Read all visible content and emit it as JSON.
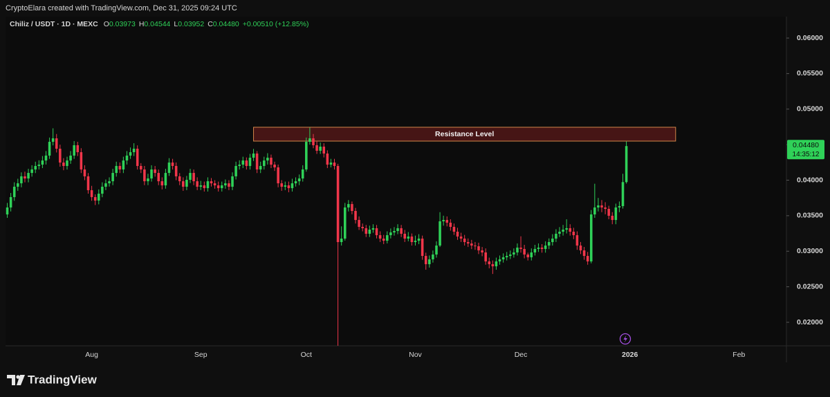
{
  "header": {
    "attribution": "CryptoElara created with TradingView.com, Dec 31, 2025 09:24 UTC",
    "brand": "TradingView"
  },
  "chart_data": {
    "type": "candlestick",
    "symbol": "Chiliz / USDT · 1D · MEXC",
    "ohlc_legend": [
      {
        "key": "O",
        "value": "0.03973"
      },
      {
        "key": "H",
        "value": "0.04544"
      },
      {
        "key": "L",
        "value": "0.03952"
      },
      {
        "key": "C",
        "value": "0.04480"
      }
    ],
    "change": "+0.00510 (+12.85%)",
    "up_color": "#2fd158",
    "down_color": "#f0364a",
    "grid": false,
    "ylim": [
      0.01669,
      0.06302
    ],
    "yticks": [
      {
        "value": 0.02,
        "label": "0.02000"
      },
      {
        "value": 0.025,
        "label": "0.02500"
      },
      {
        "value": 0.03,
        "label": "0.03000"
      },
      {
        "value": 0.035,
        "label": "0.03500"
      },
      {
        "value": 0.04,
        "label": "0.04000"
      },
      {
        "value": 0.045,
        "label": "0.04500"
      },
      {
        "value": 0.05,
        "label": "0.05000"
      },
      {
        "value": 0.055,
        "label": "0.05500"
      },
      {
        "value": 0.06,
        "label": "0.06000"
      }
    ],
    "price_tag": {
      "value": 0.0448,
      "label": "0.04480",
      "countdown": "14:35:12"
    },
    "zone": {
      "label": "Resistance Level",
      "top": 0.04745,
      "bottom": 0.0455,
      "start": 70,
      "end": 190
    },
    "categories": [
      null,
      null,
      null,
      null,
      null,
      null,
      null,
      null,
      null,
      null,
      null,
      null,
      null,
      null,
      null,
      null,
      null,
      null,
      null,
      null,
      null,
      null,
      null,
      null,
      "Aug",
      null,
      null,
      null,
      null,
      null,
      null,
      null,
      null,
      null,
      null,
      null,
      null,
      null,
      null,
      null,
      null,
      null,
      null,
      null,
      null,
      null,
      null,
      null,
      null,
      null,
      null,
      null,
      null,
      null,
      null,
      "Sep",
      null,
      null,
      null,
      null,
      null,
      null,
      null,
      null,
      null,
      null,
      null,
      null,
      null,
      null,
      null,
      null,
      null,
      null,
      null,
      null,
      null,
      null,
      null,
      null,
      null,
      null,
      null,
      null,
      null,
      "Oct",
      null,
      null,
      null,
      null,
      null,
      null,
      null,
      null,
      null,
      null,
      null,
      null,
      null,
      null,
      null,
      null,
      null,
      null,
      null,
      null,
      null,
      null,
      null,
      null,
      null,
      null,
      null,
      null,
      null,
      null,
      "Nov",
      null,
      null,
      null,
      null,
      null,
      null,
      null,
      null,
      null,
      null,
      null,
      null,
      null,
      null,
      null,
      null,
      null,
      null,
      null,
      null,
      null,
      null,
      null,
      null,
      null,
      null,
      null,
      null,
      null,
      "Dec",
      null,
      null,
      null,
      null,
      null,
      null,
      null,
      null,
      null,
      null,
      null,
      null,
      null,
      null,
      null,
      null,
      null,
      null,
      null,
      null,
      null,
      null,
      null,
      null,
      null,
      null,
      null,
      null,
      null,
      null,
      "2026",
      null,
      null,
      null,
      null,
      null,
      null,
      null,
      null,
      null,
      null,
      null,
      null,
      null,
      null,
      null,
      null,
      null,
      null,
      null,
      null,
      null,
      null,
      null,
      null,
      null,
      null,
      null,
      null,
      null,
      null,
      "Feb",
      null,
      null,
      null,
      null,
      null,
      null,
      null,
      null,
      null,
      null,
      null,
      null,
      null
    ],
    "open": [
      0.03518,
      0.03616,
      0.03762,
      0.03908,
      0.03956,
      0.04054,
      0.04024,
      0.04102,
      0.04151,
      0.042,
      0.04219,
      0.04277,
      0.04346,
      0.0454,
      0.04589,
      0.04443,
      0.04248,
      0.042,
      0.04277,
      0.04346,
      0.04492,
      0.04394,
      0.04151,
      0.04054,
      0.03859,
      0.03762,
      0.03713,
      0.0381,
      0.03908,
      0.03956,
      0.03985,
      0.04102,
      0.042,
      0.04151,
      0.04277,
      0.04346,
      0.04394,
      0.04443,
      0.042,
      0.04151,
      0.03985,
      0.04024,
      0.04151,
      0.04102,
      0.03985,
      0.03927,
      0.04102,
      0.04248,
      0.042,
      0.04054,
      0.03985,
      0.03908,
      0.04005,
      0.04102,
      0.03985,
      0.03908,
      0.03927,
      0.03888,
      0.03985,
      0.03956,
      0.03927,
      0.03888,
      0.03927,
      0.03956,
      0.03908,
      0.04054,
      0.042,
      0.04219,
      0.04277,
      0.042,
      0.04316,
      0.04375,
      0.04151,
      0.042,
      0.04277,
      0.04316,
      0.04219,
      0.0418,
      0.03956,
      0.03908,
      0.03927,
      0.03888,
      0.03956,
      0.03985,
      0.04024,
      0.04151,
      0.0454,
      0.04589,
      0.04492,
      0.04414,
      0.04472,
      0.04375,
      0.04219,
      0.04248,
      0.042,
      0.03129,
      0.03178,
      0.03616,
      0.03664,
      0.03567,
      0.0344,
      0.03343,
      0.03324,
      0.03246,
      0.03304,
      0.03324,
      0.03226,
      0.03178,
      0.03148,
      0.03226,
      0.03265,
      0.03285,
      0.03324,
      0.03246,
      0.03178,
      0.03207,
      0.03129,
      0.03148,
      0.03178,
      0.02934,
      0.02818,
      0.02886,
      0.02954,
      0.0308,
      0.03421,
      0.0344,
      0.03402,
      0.03343,
      0.03275,
      0.03207,
      0.03178,
      0.03129,
      0.03109,
      0.0308,
      0.0307,
      0.03012,
      0.02983,
      0.02857,
      0.02818,
      0.02788,
      0.02857,
      0.02886,
      0.02915,
      0.02934,
      0.02954,
      0.02983,
      0.03051,
      0.03032,
      0.02954,
      0.02915,
      0.02983,
      0.03032,
      0.03051,
      0.03032,
      0.0308,
      0.03129,
      0.03178,
      0.03246,
      0.03275,
      0.03304,
      0.03324,
      0.03275,
      0.03226,
      0.0308,
      0.03012,
      0.02934,
      0.02857,
      0.03518,
      0.03616,
      0.03645,
      0.03616,
      0.03596,
      0.03499,
      0.0344,
      0.03616,
      0.03635,
      0.03973,
      null,
      null,
      null,
      null,
      null,
      null,
      null,
      null,
      null,
      null,
      null,
      null,
      null,
      null,
      null,
      null,
      null,
      null,
      null,
      null,
      null,
      null,
      null,
      null,
      null,
      null,
      null,
      null,
      null,
      null,
      null,
      null,
      null,
      null,
      null,
      null,
      null,
      null,
      null,
      null,
      null,
      null,
      null,
      null,
      null
    ],
    "high": [
      0.0368,
      0.0382,
      0.0397,
      0.0402,
      0.0411,
      0.0412,
      0.0416,
      0.0421,
      0.0426,
      0.0428,
      0.0434,
      0.0441,
      0.046,
      0.0473,
      0.0465,
      0.045,
      0.0431,
      0.0433,
      0.0441,
      0.0455,
      0.0454,
      0.0445,
      0.0421,
      0.041,
      0.0392,
      0.038,
      0.0387,
      0.0397,
      0.0401,
      0.0404,
      0.0416,
      0.0426,
      0.0425,
      0.0433,
      0.0441,
      0.0446,
      0.0452,
      0.0449,
      0.0424,
      0.042,
      0.0409,
      0.0421,
      0.042,
      0.0415,
      0.0404,
      0.0416,
      0.0431,
      0.043,
      0.0425,
      0.041,
      0.0404,
      0.0406,
      0.0416,
      0.0415,
      0.0404,
      0.0399,
      0.0398,
      0.0404,
      0.0403,
      0.04,
      0.0398,
      0.0398,
      0.0401,
      0.04,
      0.0411,
      0.0426,
      0.0428,
      0.0433,
      0.0432,
      0.0437,
      0.0444,
      0.0441,
      0.0426,
      0.0433,
      0.0438,
      0.0436,
      0.0426,
      0.0422,
      0.04,
      0.0398,
      0.0398,
      0.0402,
      0.0404,
      0.0408,
      0.0421,
      0.046,
      0.0474,
      0.0465,
      0.0455,
      0.0453,
      0.0452,
      0.0442,
      0.043,
      0.043,
      0.0423,
      0.0335,
      0.0368,
      0.0372,
      0.037,
      0.0361,
      0.0349,
      0.0339,
      0.0337,
      0.0336,
      0.0338,
      0.0337,
      0.0328,
      0.0323,
      0.0328,
      0.0332,
      0.0334,
      0.0338,
      0.0337,
      0.033,
      0.0327,
      0.0325,
      0.0322,
      0.0324,
      0.0322,
      0.0298,
      0.0294,
      0.0301,
      0.0314,
      0.0355,
      0.035,
      0.0349,
      0.0345,
      0.0339,
      0.0333,
      0.0326,
      0.0323,
      0.0318,
      0.0316,
      0.0313,
      0.0312,
      0.0306,
      0.0304,
      0.0291,
      0.0287,
      0.0291,
      0.0294,
      0.0297,
      0.0299,
      0.0301,
      0.0304,
      0.0311,
      0.0321,
      0.0309,
      0.0298,
      0.0304,
      0.0309,
      0.0311,
      0.031,
      0.0314,
      0.0318,
      0.0324,
      0.0331,
      0.0334,
      0.0337,
      0.0345,
      0.0338,
      0.0333,
      0.0328,
      0.0313,
      0.0306,
      0.0299,
      0.0358,
      0.0395,
      0.0375,
      0.0372,
      0.0369,
      0.0364,
      0.0355,
      0.0367,
      0.037,
      0.0409,
      0.04544,
      null,
      null,
      null,
      null,
      null,
      null,
      null,
      null,
      null,
      null,
      null,
      null,
      null,
      null,
      null,
      null,
      null,
      null,
      null,
      null,
      null,
      null,
      null,
      null,
      null,
      null,
      null,
      null,
      null,
      null,
      null,
      null,
      null,
      null,
      null,
      null,
      null,
      null,
      null,
      null,
      null,
      null,
      null,
      null,
      null
    ],
    "low": [
      0.0347,
      0.0356,
      0.0371,
      0.0385,
      0.039,
      0.0397,
      0.0397,
      0.0405,
      0.041,
      0.0415,
      0.0417,
      0.0422,
      0.043,
      0.0449,
      0.0439,
      0.0419,
      0.0414,
      0.0415,
      0.0423,
      0.043,
      0.0434,
      0.041,
      0.04,
      0.0381,
      0.0371,
      0.0365,
      0.0366,
      0.0376,
      0.0386,
      0.0391,
      0.0393,
      0.0405,
      0.041,
      0.041,
      0.0422,
      0.043,
      0.0434,
      0.0415,
      0.041,
      0.0393,
      0.0393,
      0.0398,
      0.0405,
      0.0393,
      0.0387,
      0.0388,
      0.0406,
      0.0415,
      0.04,
      0.0393,
      0.0385,
      0.0386,
      0.0396,
      0.0393,
      0.0386,
      0.0386,
      0.0384,
      0.0384,
      0.0391,
      0.0388,
      0.0384,
      0.0384,
      0.0388,
      0.0386,
      0.0386,
      0.0401,
      0.0415,
      0.0417,
      0.0415,
      0.0415,
      0.0427,
      0.041,
      0.041,
      0.0415,
      0.0422,
      0.0417,
      0.0413,
      0.039,
      0.0385,
      0.0386,
      0.0383,
      0.0384,
      0.0391,
      0.0393,
      0.0398,
      0.0412,
      0.045,
      0.0445,
      0.0437,
      0.0437,
      0.0432,
      0.0417,
      0.0418,
      0.0415,
      0.0167,
      0.0308,
      0.0315,
      0.0356,
      0.0352,
      0.0339,
      0.033,
      0.0328,
      0.032,
      0.032,
      0.0326,
      0.0318,
      0.0313,
      0.031,
      0.0311,
      0.0318,
      0.0322,
      0.0324,
      0.032,
      0.0313,
      0.0314,
      0.0308,
      0.0308,
      0.031,
      0.0288,
      0.0274,
      0.0277,
      0.0284,
      0.0291,
      0.0306,
      0.0336,
      0.0335,
      0.0329,
      0.0323,
      0.0316,
      0.0313,
      0.0308,
      0.0306,
      0.0303,
      0.0302,
      0.0296,
      0.0293,
      0.0281,
      0.0276,
      0.0268,
      0.0274,
      0.0281,
      0.0284,
      0.0287,
      0.0289,
      0.0291,
      0.0294,
      0.0298,
      0.029,
      0.0287,
      0.0287,
      0.0294,
      0.0299,
      0.0298,
      0.0298,
      0.0303,
      0.0308,
      0.0313,
      0.032,
      0.0322,
      0.0325,
      0.0322,
      0.0317,
      0.0302,
      0.0296,
      0.0288,
      0.0281,
      0.0283,
      0.0347,
      0.0356,
      0.0355,
      0.0352,
      0.0345,
      0.0338,
      0.0338,
      0.0355,
      0.036,
      0.03952,
      null,
      null,
      null,
      null,
      null,
      null,
      null,
      null,
      null,
      null,
      null,
      null,
      null,
      null,
      null,
      null,
      null,
      null,
      null,
      null,
      null,
      null,
      null,
      null,
      null,
      null,
      null,
      null,
      null,
      null,
      null,
      null,
      null,
      null,
      null,
      null,
      null,
      null,
      null,
      null,
      null,
      null,
      null,
      null,
      null
    ],
    "close": [
      0.03616,
      0.03762,
      0.03908,
      0.03956,
      0.04054,
      0.04024,
      0.04102,
      0.04151,
      0.042,
      0.04219,
      0.04277,
      0.04346,
      0.0454,
      0.04589,
      0.04443,
      0.04248,
      0.042,
      0.04277,
      0.04346,
      0.04492,
      0.04394,
      0.04151,
      0.04054,
      0.03859,
      0.03762,
      0.03713,
      0.0381,
      0.03908,
      0.03956,
      0.03985,
      0.04102,
      0.042,
      0.04151,
      0.04277,
      0.04346,
      0.04394,
      0.04443,
      0.042,
      0.04151,
      0.03985,
      0.04024,
      0.04151,
      0.04102,
      0.03985,
      0.03927,
      0.04102,
      0.04248,
      0.042,
      0.04054,
      0.03985,
      0.03908,
      0.04005,
      0.04102,
      0.03985,
      0.03908,
      0.03927,
      0.03888,
      0.03985,
      0.03956,
      0.03927,
      0.03888,
      0.03927,
      0.03956,
      0.03908,
      0.04054,
      0.042,
      0.04219,
      0.04277,
      0.042,
      0.04316,
      0.04375,
      0.04151,
      0.042,
      0.04277,
      0.04316,
      0.04219,
      0.0418,
      0.03956,
      0.03908,
      0.03927,
      0.03888,
      0.03956,
      0.03985,
      0.04024,
      0.04151,
      0.0454,
      0.04589,
      0.04492,
      0.04414,
      0.04472,
      0.04375,
      0.04219,
      0.04248,
      0.042,
      0.03129,
      0.03178,
      0.03616,
      0.03664,
      0.03567,
      0.0344,
      0.03343,
      0.03324,
      0.03246,
      0.03304,
      0.03324,
      0.03226,
      0.03178,
      0.03148,
      0.03226,
      0.03265,
      0.03285,
      0.03324,
      0.03246,
      0.03178,
      0.03207,
      0.03129,
      0.03148,
      0.03178,
      0.02934,
      0.02818,
      0.02886,
      0.02954,
      0.0308,
      0.03421,
      0.0344,
      0.03402,
      0.03343,
      0.03275,
      0.03207,
      0.03178,
      0.03129,
      0.03109,
      0.0308,
      0.0307,
      0.03012,
      0.02983,
      0.02857,
      0.02818,
      0.02788,
      0.02857,
      0.02886,
      0.02915,
      0.02934,
      0.02954,
      0.02983,
      0.03051,
      0.03032,
      0.02954,
      0.02915,
      0.02983,
      0.03032,
      0.03051,
      0.03032,
      0.0308,
      0.03129,
      0.03178,
      0.03246,
      0.03275,
      0.03304,
      0.03324,
      0.03275,
      0.03226,
      0.0308,
      0.03012,
      0.02934,
      0.02857,
      0.03518,
      0.03616,
      0.03645,
      0.03616,
      0.03596,
      0.03499,
      0.0344,
      0.03616,
      0.03635,
      0.03973,
      0.0448,
      null,
      null,
      null,
      null,
      null,
      null,
      null,
      null,
      null,
      null,
      null,
      null,
      null,
      null,
      null,
      null,
      null,
      null,
      null,
      null,
      null,
      null,
      null,
      null,
      null,
      null,
      null,
      null,
      null,
      null,
      null,
      null,
      null,
      null,
      null,
      null,
      null,
      null,
      null,
      null,
      null,
      null,
      null,
      null,
      null
    ]
  }
}
